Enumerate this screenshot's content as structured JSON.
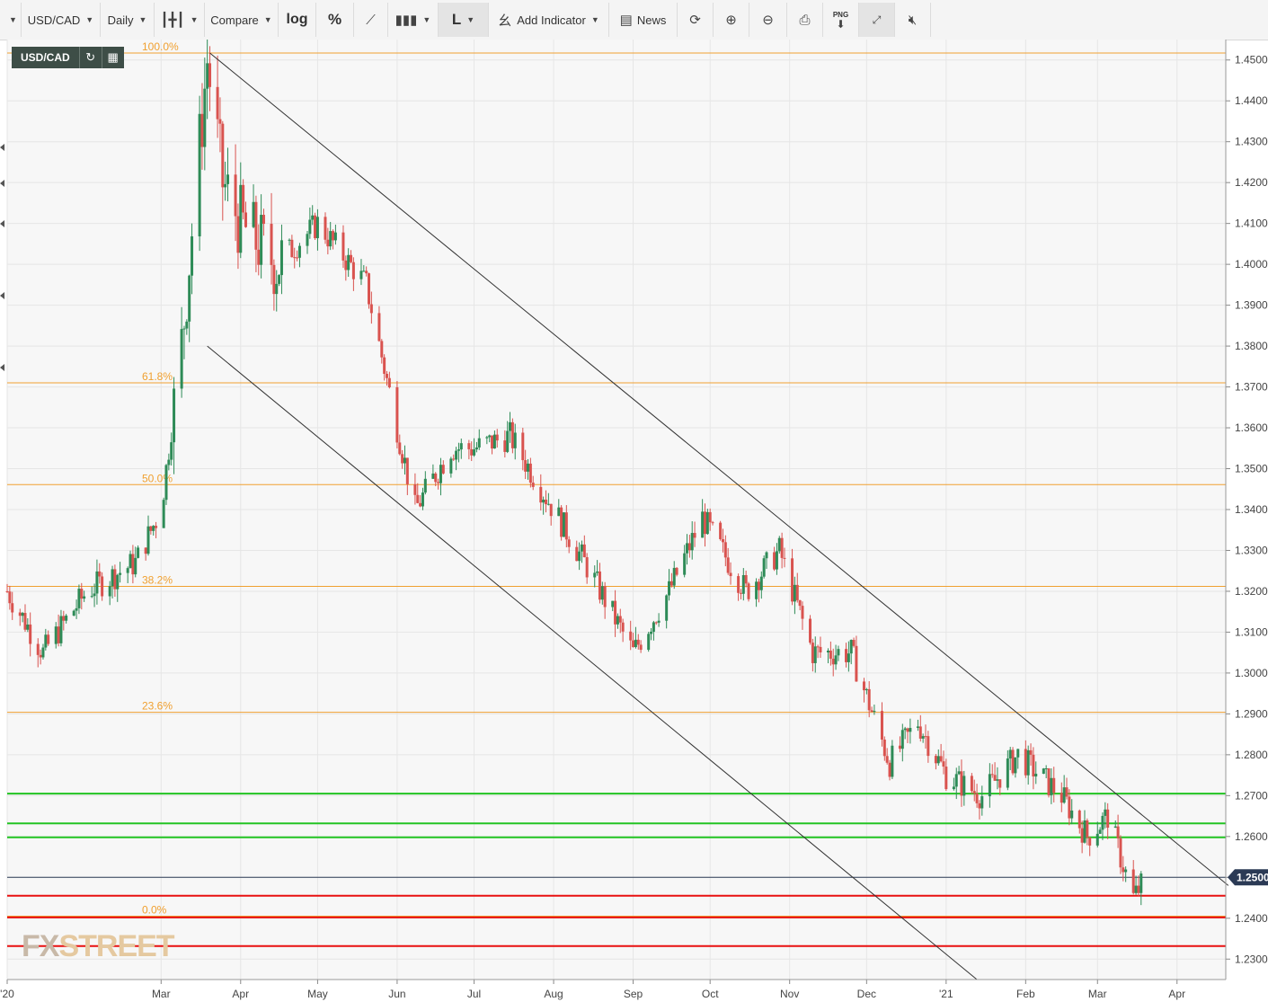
{
  "toolbar": {
    "symbol": "USD/CAD",
    "interval": "Daily",
    "compare": "Compare",
    "log": "log",
    "percent": "%",
    "line_type": "L",
    "add_indicator": "Add Indicator",
    "news": "News",
    "png": "PNG"
  },
  "symbol_badge": "USD/CAD",
  "logo": {
    "text_a": "FX",
    "text_b": "STREET"
  },
  "colors": {
    "up": "#2e8b57",
    "down": "#d9534f",
    "fib": "#f0a030",
    "support": "#e81010",
    "resistance": "#22c422",
    "price_line": "#2b3a55",
    "trend": "#333333"
  },
  "chart_data": {
    "type": "candlestick",
    "symbol": "USD/CAD",
    "interval": "Daily",
    "ylim": [
      1.225,
      1.455
    ],
    "y_ticks": [
      1.23,
      1.24,
      1.25,
      1.26,
      1.27,
      1.28,
      1.29,
      1.3,
      1.31,
      1.32,
      1.33,
      1.34,
      1.35,
      1.36,
      1.37,
      1.38,
      1.39,
      1.4,
      1.41,
      1.42,
      1.43,
      1.44,
      1.45
    ],
    "y_tick_labels": [
      "1.2300",
      "1.2400",
      "1.2500",
      "1.2600",
      "1.2700",
      "1.2800",
      "1.2900",
      "1.3000",
      "1.3100",
      "1.3200",
      "1.3300",
      "1.3400",
      "1.3500",
      "1.3600",
      "1.3700",
      "1.3800",
      "1.3900",
      "1.4000",
      "1.4100",
      "1.4200",
      "1.4300",
      "1.4400",
      "1.4500"
    ],
    "x_ticks": [
      {
        "label": "'20",
        "date": "2020-01-01"
      },
      {
        "label": "Mar",
        "date": "2020-03-01"
      },
      {
        "label": "Apr",
        "date": "2020-04-01"
      },
      {
        "label": "May",
        "date": "2020-05-01"
      },
      {
        "label": "Jun",
        "date": "2020-06-01"
      },
      {
        "label": "Jul",
        "date": "2020-07-01"
      },
      {
        "label": "Aug",
        "date": "2020-08-01"
      },
      {
        "label": "Sep",
        "date": "2020-09-01"
      },
      {
        "label": "Oct",
        "date": "2020-10-01"
      },
      {
        "label": "Nov",
        "date": "2020-11-01"
      },
      {
        "label": "Dec",
        "date": "2020-12-01"
      },
      {
        "label": "'21",
        "date": "2021-01-01"
      },
      {
        "label": "Feb",
        "date": "2021-02-01"
      },
      {
        "label": "Mar",
        "date": "2021-03-01"
      },
      {
        "label": "Apr",
        "date": "2021-04-01"
      }
    ],
    "current_price": 1.25,
    "current_price_label": "1.2500",
    "fibonacci": [
      {
        "label": "100.0%",
        "value": 1.4517
      },
      {
        "label": "61.8%",
        "value": 1.371
      },
      {
        "label": "50.0%",
        "value": 1.3461
      },
      {
        "label": "38.2%",
        "value": 1.3212
      },
      {
        "label": "23.6%",
        "value": 1.2904
      },
      {
        "label": "0.0%",
        "value": 1.2405
      }
    ],
    "support_levels": [
      1.2455,
      1.2402,
      1.2332
    ],
    "resistance_levels": [
      1.2705,
      1.2632,
      1.2598
    ],
    "trendlines": [
      {
        "from": {
          "date": "2020-03-20",
          "y": 1.4517
        },
        "to": {
          "date": "2021-04-21",
          "y": 1.248
        }
      },
      {
        "from": {
          "date": "2020-03-19",
          "y": 1.38
        },
        "to": {
          "date": "2021-01-13",
          "y": 1.225
        }
      }
    ],
    "anchors": [
      {
        "date": "2020-01-01",
        "y": 1.32
      },
      {
        "date": "2020-01-15",
        "y": 1.305
      },
      {
        "date": "2020-02-01",
        "y": 1.32
      },
      {
        "date": "2020-02-20",
        "y": 1.327
      },
      {
        "date": "2020-03-01",
        "y": 1.34
      },
      {
        "date": "2020-03-09",
        "y": 1.38
      },
      {
        "date": "2020-03-19",
        "y": 1.45
      },
      {
        "date": "2020-03-25",
        "y": 1.42
      },
      {
        "date": "2020-04-01",
        "y": 1.41
      },
      {
        "date": "2020-04-15",
        "y": 1.4
      },
      {
        "date": "2020-05-01",
        "y": 1.41
      },
      {
        "date": "2020-05-20",
        "y": 1.395
      },
      {
        "date": "2020-06-01",
        "y": 1.36
      },
      {
        "date": "2020-06-08",
        "y": 1.34
      },
      {
        "date": "2020-06-22",
        "y": 1.355
      },
      {
        "date": "2020-07-01",
        "y": 1.355
      },
      {
        "date": "2020-07-15",
        "y": 1.358
      },
      {
        "date": "2020-08-01",
        "y": 1.34
      },
      {
        "date": "2020-08-15",
        "y": 1.325
      },
      {
        "date": "2020-09-01",
        "y": 1.305
      },
      {
        "date": "2020-09-15",
        "y": 1.32
      },
      {
        "date": "2020-09-28",
        "y": 1.338
      },
      {
        "date": "2020-10-15",
        "y": 1.32
      },
      {
        "date": "2020-10-28",
        "y": 1.33
      },
      {
        "date": "2020-11-10",
        "y": 1.305
      },
      {
        "date": "2020-11-25",
        "y": 1.305
      },
      {
        "date": "2020-12-10",
        "y": 1.278
      },
      {
        "date": "2020-12-21",
        "y": 1.288
      },
      {
        "date": "2021-01-01",
        "y": 1.275
      },
      {
        "date": "2021-01-15",
        "y": 1.27
      },
      {
        "date": "2021-01-29",
        "y": 1.28
      },
      {
        "date": "2021-02-15",
        "y": 1.27
      },
      {
        "date": "2021-02-25",
        "y": 1.26
      },
      {
        "date": "2021-03-05",
        "y": 1.265
      },
      {
        "date": "2021-03-15",
        "y": 1.245
      },
      {
        "date": "2021-03-18",
        "y": 1.248
      }
    ]
  }
}
